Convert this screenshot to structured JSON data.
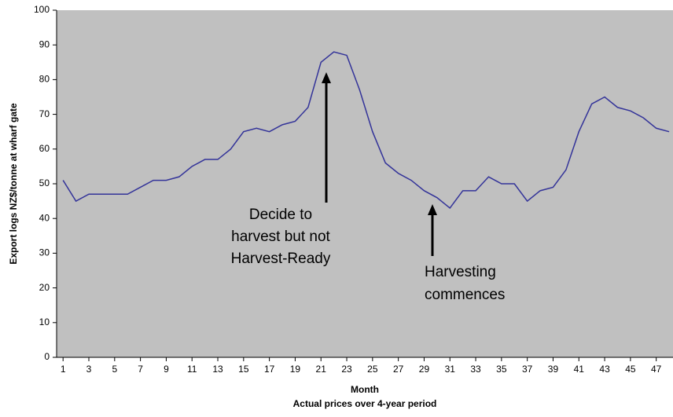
{
  "chart_data": {
    "type": "line",
    "x_label": "Month",
    "x_sublabel": "Actual prices over 4-year period",
    "y_label": "Export logs NZ$/tonne at wharf gate",
    "x": [
      1,
      2,
      3,
      4,
      5,
      6,
      7,
      8,
      9,
      10,
      11,
      12,
      13,
      14,
      15,
      16,
      17,
      18,
      19,
      20,
      21,
      22,
      23,
      24,
      25,
      26,
      27,
      28,
      29,
      30,
      31,
      32,
      33,
      34,
      35,
      36,
      37,
      38,
      39,
      40,
      41,
      42,
      43,
      44,
      45,
      46,
      47,
      48
    ],
    "series": [
      {
        "color": "#333399",
        "values": [
          51,
          45,
          47,
          47,
          47,
          47,
          49,
          51,
          51,
          52,
          55,
          57,
          57,
          60,
          65,
          66,
          65,
          67,
          68,
          72,
          85,
          88,
          87,
          77,
          65,
          56,
          53,
          51,
          48,
          46,
          43,
          48,
          48,
          52,
          50,
          50,
          45,
          48,
          49,
          54,
          65,
          73,
          75,
          72,
          71,
          69,
          66,
          65
        ]
      }
    ],
    "xlim": [
      0.5,
      48.3
    ],
    "xticks": [
      1,
      3,
      5,
      7,
      9,
      11,
      13,
      15,
      17,
      19,
      21,
      23,
      25,
      27,
      29,
      31,
      33,
      35,
      37,
      39,
      41,
      43,
      45,
      47
    ],
    "ylim": [
      0,
      100
    ],
    "yticks": [
      0,
      10,
      20,
      30,
      40,
      50,
      60,
      70,
      80,
      90,
      100
    ],
    "background": "#c0c0c0",
    "annotations": [
      {
        "lines": [
          "Decide to",
          "harvest but not",
          "Harvest-Ready"
        ]
      },
      {
        "lines": [
          "Harvesting",
          "commences"
        ]
      }
    ]
  }
}
